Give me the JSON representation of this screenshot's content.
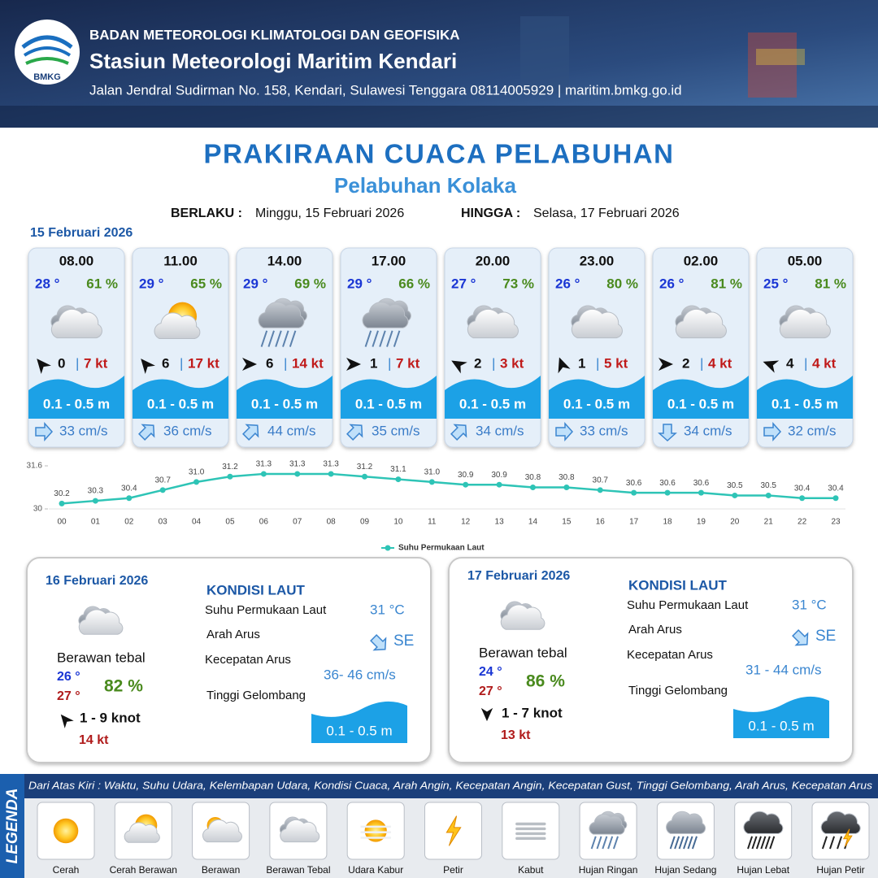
{
  "header": {
    "agency": "BADAN METEOROLOGI KLIMATOLOGI DAN GEOFISIKA",
    "station": "Stasiun Meteorologi Maritim Kendari",
    "address": "Jalan Jendral Sudirman No. 158, Kendari, Sulawesi Tenggara  08114005929 | maritim.bmkg.go.id",
    "logo_text": "BMKG"
  },
  "title": "PRAKIRAAN CUACA PELABUHAN",
  "subtitle": "Pelabuhan Kolaka",
  "validity": {
    "from_label": "BERLAKU :",
    "from": "Minggu, 15 Februari 2026",
    "to_label": "HINGGA :",
    "to": "Selasa, 17 Februari 2026"
  },
  "today": {
    "date": "15 Februari 2026",
    "forecasts": [
      {
        "time": "08.00",
        "temp": "28 °",
        "humidity": "61 %",
        "wind": "0",
        "gust": "7 kt",
        "wave": "0.1 - 0.5 m",
        "current": "33 cm/s"
      },
      {
        "time": "11.00",
        "temp": "29 °",
        "humidity": "65 %",
        "wind": "6",
        "gust": "17 kt",
        "wave": "0.1 - 0.5 m",
        "current": "36 cm/s"
      },
      {
        "time": "14.00",
        "temp": "29 °",
        "humidity": "69 %",
        "wind": "6",
        "gust": "14 kt",
        "wave": "0.1 - 0.5 m",
        "current": "44 cm/s"
      },
      {
        "time": "17.00",
        "temp": "29 °",
        "humidity": "66 %",
        "wind": "1",
        "gust": "7 kt",
        "wave": "0.1 - 0.5 m",
        "current": "35 cm/s"
      },
      {
        "time": "20.00",
        "temp": "27 °",
        "humidity": "73 %",
        "wind": "2",
        "gust": "3 kt",
        "wave": "0.1 - 0.5 m",
        "current": "34 cm/s"
      },
      {
        "time": "23.00",
        "temp": "26 °",
        "humidity": "80 %",
        "wind": "1",
        "gust": "5 kt",
        "wave": "0.1 - 0.5 m",
        "current": "33 cm/s"
      },
      {
        "time": "02.00",
        "temp": "26 °",
        "humidity": "81 %",
        "wind": "2",
        "gust": "4 kt",
        "wave": "0.1 - 0.5 m",
        "current": "34 cm/s"
      },
      {
        "time": "05.00",
        "temp": "25 °",
        "humidity": "81 %",
        "wind": "4",
        "gust": "4 kt",
        "wave": "0.1 - 0.5 m",
        "current": "32 cm/s"
      }
    ]
  },
  "chart_data": {
    "type": "line",
    "categories": [
      "00",
      "01",
      "02",
      "03",
      "04",
      "05",
      "06",
      "07",
      "08",
      "09",
      "10",
      "11",
      "12",
      "13",
      "14",
      "15",
      "16",
      "17",
      "18",
      "19",
      "20",
      "21",
      "22",
      "23"
    ],
    "series": [
      {
        "name": "Suhu Permukaan Laut",
        "color": "#2ec4b6",
        "values": [
          30.2,
          30.3,
          30.4,
          30.7,
          31.0,
          31.2,
          31.3,
          31.3,
          31.3,
          31.2,
          31.1,
          31.0,
          30.9,
          30.9,
          30.8,
          30.8,
          30.7,
          30.6,
          30.6,
          30.6,
          30.5,
          30.5,
          30.4,
          30.4
        ],
        "value_labels": [
          "30.2",
          "30.3",
          "30.4",
          "30.7",
          "31.0",
          "31.2",
          "31.3",
          "31.3",
          "31.3",
          "31.2",
          "31.1",
          "31.0",
          "30.9",
          "30.9",
          "30.8",
          "30.8",
          "30.7",
          "30.6",
          "30.6",
          "30.6",
          "30.5",
          "30.5",
          "30.4",
          "30.4"
        ]
      }
    ],
    "ylim": [
      30,
      31.6
    ],
    "yticks": [
      30,
      31.6
    ]
  },
  "days": [
    {
      "date": "16 Februari 2026",
      "condition": "Berawan tebal",
      "temp_min": "26 °",
      "temp_max": "27 °",
      "humidity": "82 %",
      "wind": "1 - 9 knot",
      "gust": "14 kt",
      "sea_title": "KONDISI LAUT",
      "sst_label": "Suhu Permukaan Laut",
      "sst": "31 °C",
      "current_dir_label": "Arah Arus",
      "current_dir": "SE",
      "current_speed_label": "Kecepatan Arus",
      "current_speed": "36- 46 cm/s",
      "wave_label": "Tinggi Gelombang",
      "wave": "0.1 - 0.5 m"
    },
    {
      "date": "17 Februari 2026",
      "condition": "Berawan tebal",
      "temp_min": "24 °",
      "temp_max": "27 °",
      "humidity": "86 %",
      "wind": "1 - 7 knot",
      "gust": "13 kt",
      "sea_title": "KONDISI LAUT",
      "sst_label": "Suhu Permukaan Laut",
      "sst": "31 °C",
      "current_dir_label": "Arah Arus",
      "current_dir": "SE",
      "current_speed_label": "Kecepatan Arus",
      "current_speed": "31 - 44 cm/s",
      "wave_label": "Tinggi Gelombang",
      "wave": "0.1 - 0.5 m"
    }
  ],
  "legend": {
    "title": "LEGENDA",
    "description": "Dari Atas Kiri : Waktu, Suhu Udara, Kelembapan Udara, Kondisi Cuaca, Arah Angin, Kecepatan Angin, Kecepatan Gust, Tinggi Gelombang, Arah Arus, Kecepatan Arus",
    "items": [
      "Cerah",
      "Cerah Berawan",
      "Berawan",
      "Berawan Tebal",
      "Udara Kabur",
      "Petir",
      "Kabut",
      "Hujan Ringan",
      "Hujan Sedang",
      "Hujan Lebat",
      "Hujan Petir"
    ]
  }
}
